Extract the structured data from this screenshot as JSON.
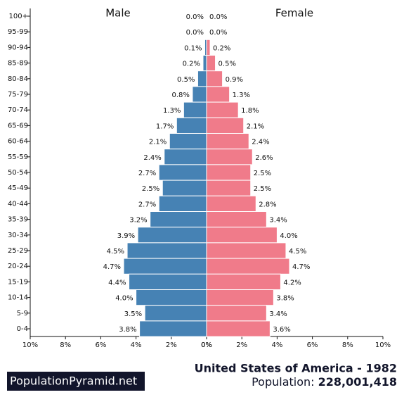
{
  "chart_data": {
    "type": "pyramid",
    "title": "United States of America - 1982",
    "population_label": "Population:",
    "population": "228,001,418",
    "source": "PopulationPyramid.net",
    "categories": [
      "100+",
      "95-99",
      "90-94",
      "85-89",
      "80-84",
      "75-79",
      "70-74",
      "65-69",
      "60-64",
      "55-59",
      "50-54",
      "45-49",
      "40-44",
      "35-39",
      "30-34",
      "25-29",
      "20-24",
      "15-19",
      "10-14",
      "5-9",
      "0-4"
    ],
    "series": [
      {
        "name": "Male",
        "color": "#4682b4",
        "values": [
          0.0,
          0.0,
          0.1,
          0.2,
          0.5,
          0.8,
          1.3,
          1.7,
          2.1,
          2.4,
          2.7,
          2.5,
          2.7,
          3.2,
          3.9,
          4.5,
          4.7,
          4.4,
          4.0,
          3.5,
          3.8
        ],
        "value_labels": [
          "0.0%",
          "0.0%",
          "0.1%",
          "0.2%",
          "0.5%",
          "0.8%",
          "1.3%",
          "1.7%",
          "2.1%",
          "2.4%",
          "2.7%",
          "2.5%",
          "2.7%",
          "3.2%",
          "3.9%",
          "4.5%",
          "4.7%",
          "4.4%",
          "4.0%",
          "3.5%",
          "3.8%"
        ]
      },
      {
        "name": "Female",
        "color": "#f07b8a",
        "values": [
          0.0,
          0.0,
          0.2,
          0.5,
          0.9,
          1.3,
          1.8,
          2.1,
          2.4,
          2.6,
          2.5,
          2.5,
          2.8,
          3.4,
          4.0,
          4.5,
          4.7,
          4.2,
          3.8,
          3.4,
          3.6
        ],
        "value_labels": [
          "0.0%",
          "0.0%",
          "0.2%",
          "0.5%",
          "0.9%",
          "1.3%",
          "1.8%",
          "2.1%",
          "2.4%",
          "2.6%",
          "2.5%",
          "2.5%",
          "2.8%",
          "3.4%",
          "4.0%",
          "4.5%",
          "4.7%",
          "4.2%",
          "3.8%",
          "3.4%",
          "3.6%"
        ]
      }
    ],
    "xlim": [
      0,
      10
    ],
    "xticks": [
      {
        "value": 0,
        "label": "0%"
      },
      {
        "value": 2,
        "label": "2%"
      },
      {
        "value": 4,
        "label": "4%"
      },
      {
        "value": 6,
        "label": "6%"
      },
      {
        "value": 8,
        "label": "8%"
      },
      {
        "value": 10,
        "label": "10%"
      }
    ]
  }
}
